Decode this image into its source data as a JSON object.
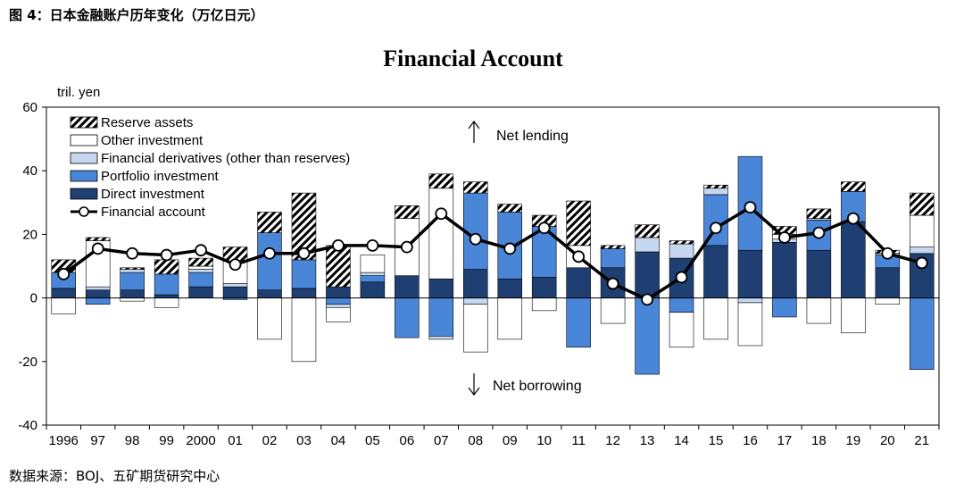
{
  "caption": "图 4：日本金融账户历年变化（万亿日元）",
  "source": "数据来源：BOJ、五矿期货研究中心",
  "chart_data": {
    "type": "bar",
    "stacked": true,
    "title": "Financial Account",
    "ylabel": "tril. yen",
    "ylim": [
      -40,
      60
    ],
    "yticks": [
      -40,
      -20,
      0,
      20,
      40,
      60
    ],
    "categories": [
      "1996",
      "97",
      "98",
      "99",
      "2000",
      "01",
      "02",
      "03",
      "04",
      "05",
      "06",
      "07",
      "08",
      "09",
      "10",
      "11",
      "12",
      "13",
      "14",
      "15",
      "16",
      "17",
      "18",
      "19",
      "20",
      "21"
    ],
    "series": [
      {
        "name": "Direct investment",
        "color": "#1f3f73",
        "values": [
          3,
          2.5,
          2.5,
          1,
          3.5,
          3.5,
          2.5,
          3,
          3.5,
          5,
          7,
          6,
          9,
          6,
          6.5,
          9.5,
          9.5,
          14.5,
          12.5,
          16.5,
          15,
          17.5,
          15,
          24,
          9.5,
          14
        ]
      },
      {
        "name": "Portfolio investment",
        "color": "#4a86d8",
        "values": [
          5,
          -2,
          5.5,
          6.5,
          4.5,
          -0.5,
          18,
          9,
          -2,
          2,
          -12.5,
          -12,
          24,
          21,
          16,
          -15.5,
          6,
          -24,
          -4.5,
          16,
          29.5,
          -6,
          9.5,
          9.5,
          4,
          -22.5
        ]
      },
      {
        "name": "Financial derivatives (other than reserves)",
        "color": "#c6d8f0",
        "values": [
          0,
          1,
          1,
          0,
          1,
          1,
          0,
          0,
          -1,
          1,
          0,
          -1,
          -2,
          0,
          0,
          0,
          0,
          4.5,
          4.5,
          2,
          -1.5,
          1,
          0.5,
          0,
          0.5,
          2
        ]
      },
      {
        "name": "Other investment",
        "color": "#ffffff",
        "values": [
          -5,
          14.5,
          -1,
          -3,
          1,
          7,
          -13,
          -20,
          -4.5,
          5.5,
          18,
          28.5,
          -15,
          -13,
          -4,
          7,
          -8,
          0,
          -11,
          -13,
          -13.5,
          1.5,
          -8,
          -11,
          -2,
          10
        ]
      },
      {
        "name": "Reserve assets",
        "color": "hatch",
        "values": [
          4,
          1,
          0.5,
          4.5,
          2.5,
          4.5,
          6.5,
          21,
          13,
          0,
          4,
          4.5,
          3.5,
          2.5,
          3.5,
          14,
          1,
          4,
          1,
          1,
          0,
          2.5,
          3,
          3,
          1,
          7
        ]
      },
      {
        "name": "Financial account",
        "type": "line",
        "values": [
          7.5,
          15.5,
          14,
          13.5,
          15,
          10.5,
          14,
          14,
          16.5,
          16.5,
          16,
          26.5,
          18.5,
          15.5,
          22,
          13,
          4.5,
          -0.5,
          6.5,
          22,
          28.5,
          19,
          20.5,
          25,
          14,
          11
        ]
      }
    ],
    "legend_position": "top-left",
    "annotations": {
      "up": "Net lending",
      "down": "Net borrowing"
    },
    "grid": false
  }
}
